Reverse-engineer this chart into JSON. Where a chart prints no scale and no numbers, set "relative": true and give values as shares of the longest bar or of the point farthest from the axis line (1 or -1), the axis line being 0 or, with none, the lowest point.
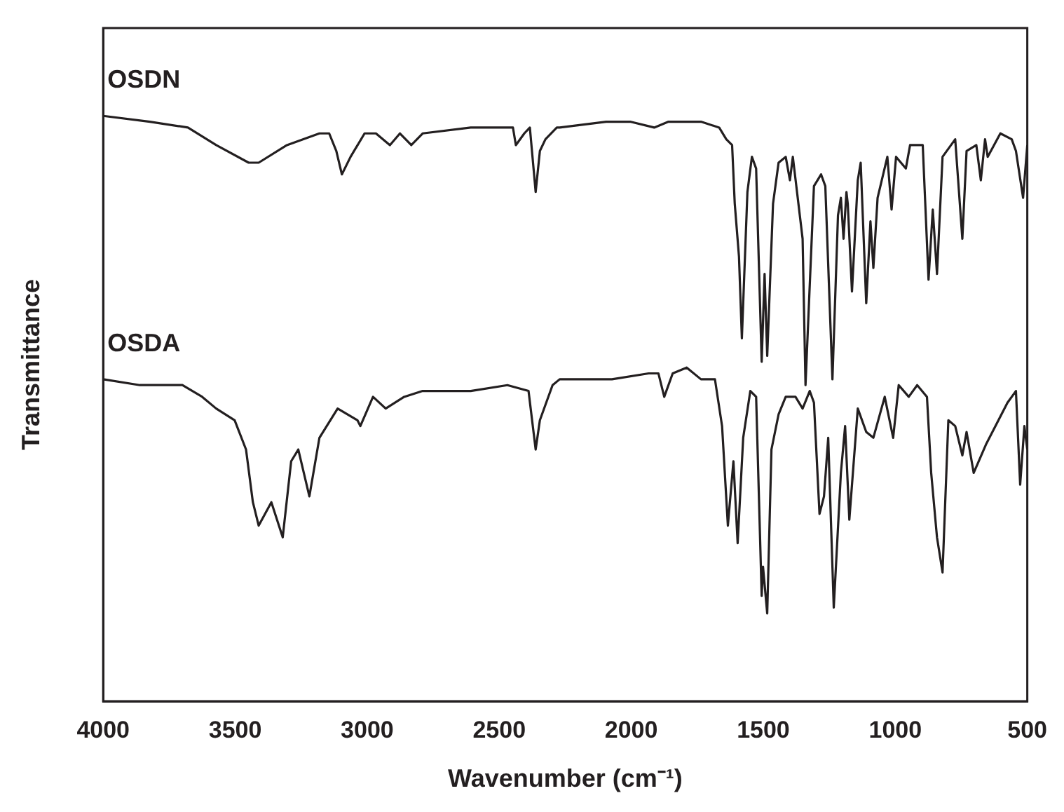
{
  "chart_data": {
    "type": "line",
    "xlabel": "Wavenumber (cm⁻¹)",
    "ylabel": "Transmittance",
    "relative": true,
    "xlim": [
      4000,
      500
    ],
    "xticks": [
      4000,
      3500,
      3000,
      2500,
      2000,
      1500,
      1000,
      500
    ],
    "grid": false,
    "legend": false,
    "marker": "none",
    "line_style": "solid",
    "series": [
      {
        "name": "OSDN",
        "color": "#231f20",
        "x": [
          4000,
          3823,
          3679,
          3572,
          3449,
          3411,
          3304,
          3181,
          3144,
          3117,
          3096,
          3063,
          3010,
          2967,
          2914,
          2876,
          2833,
          2790,
          2608,
          2501,
          2448,
          2437,
          2405,
          2384,
          2362,
          2346,
          2325,
          2282,
          2271,
          2095,
          2004,
          1913,
          1859,
          1736,
          1667,
          1640,
          1618,
          1608,
          1592,
          1581,
          1560,
          1543,
          1527,
          1506,
          1495,
          1485,
          1463,
          1442,
          1415,
          1399,
          1388,
          1351,
          1340,
          1308,
          1281,
          1265,
          1238,
          1217,
          1206,
          1196,
          1185,
          1180,
          1164,
          1142,
          1131,
          1110,
          1094,
          1083,
          1067,
          1030,
          1014,
          997,
          960,
          944,
          896,
          874,
          858,
          842,
          821,
          773,
          746,
          730,
          693,
          676,
          660,
          650,
          602,
          559,
          543,
          516,
          500
        ],
        "values": [
          1.0,
          0.99,
          0.98,
          0.95,
          0.92,
          0.92,
          0.95,
          0.97,
          0.97,
          0.94,
          0.9,
          0.93,
          0.97,
          0.97,
          0.95,
          0.97,
          0.95,
          0.97,
          0.98,
          0.98,
          0.98,
          0.95,
          0.97,
          0.98,
          0.87,
          0.94,
          0.96,
          0.98,
          0.98,
          0.99,
          0.99,
          0.98,
          0.99,
          0.99,
          0.98,
          0.96,
          0.95,
          0.85,
          0.76,
          0.62,
          0.87,
          0.93,
          0.91,
          0.58,
          0.73,
          0.59,
          0.85,
          0.92,
          0.93,
          0.89,
          0.93,
          0.79,
          0.54,
          0.88,
          0.9,
          0.88,
          0.55,
          0.83,
          0.86,
          0.79,
          0.87,
          0.85,
          0.7,
          0.89,
          0.92,
          0.68,
          0.82,
          0.74,
          0.86,
          0.93,
          0.84,
          0.93,
          0.91,
          0.95,
          0.95,
          0.72,
          0.84,
          0.73,
          0.93,
          0.96,
          0.79,
          0.94,
          0.95,
          0.89,
          0.96,
          0.93,
          0.97,
          0.96,
          0.94,
          0.86,
          0.95
        ]
      },
      {
        "name": "OSDA",
        "color": "#231f20",
        "x": [
          4000,
          3861,
          3700,
          3625,
          3572,
          3502,
          3459,
          3433,
          3411,
          3363,
          3320,
          3288,
          3261,
          3219,
          3181,
          3112,
          3037,
          3026,
          2978,
          2930,
          2860,
          2790,
          2608,
          2469,
          2389,
          2362,
          2346,
          2298,
          2271,
          2073,
          1934,
          1897,
          1875,
          1843,
          1790,
          1736,
          1683,
          1656,
          1634,
          1613,
          1597,
          1576,
          1549,
          1527,
          1506,
          1501,
          1485,
          1469,
          1442,
          1415,
          1378,
          1351,
          1324,
          1308,
          1287,
          1270,
          1254,
          1233,
          1206,
          1190,
          1174,
          1142,
          1110,
          1083,
          1040,
          1008,
          987,
          949,
          917,
          880,
          864,
          842,
          821,
          799,
          773,
          746,
          730,
          703,
          655,
          575,
          543,
          527,
          511,
          500
        ],
        "values": [
          0.55,
          0.54,
          0.54,
          0.52,
          0.5,
          0.48,
          0.43,
          0.34,
          0.3,
          0.34,
          0.28,
          0.41,
          0.43,
          0.35,
          0.45,
          0.5,
          0.48,
          0.47,
          0.52,
          0.5,
          0.52,
          0.53,
          0.53,
          0.54,
          0.53,
          0.43,
          0.48,
          0.54,
          0.55,
          0.55,
          0.56,
          0.56,
          0.52,
          0.56,
          0.57,
          0.55,
          0.55,
          0.47,
          0.3,
          0.41,
          0.27,
          0.45,
          0.53,
          0.52,
          0.18,
          0.23,
          0.15,
          0.43,
          0.49,
          0.52,
          0.52,
          0.5,
          0.53,
          0.51,
          0.32,
          0.35,
          0.45,
          0.16,
          0.39,
          0.47,
          0.31,
          0.5,
          0.46,
          0.45,
          0.52,
          0.45,
          0.54,
          0.52,
          0.54,
          0.52,
          0.39,
          0.28,
          0.22,
          0.48,
          0.47,
          0.42,
          0.46,
          0.39,
          0.44,
          0.51,
          0.53,
          0.37,
          0.47,
          0.43
        ]
      }
    ]
  }
}
